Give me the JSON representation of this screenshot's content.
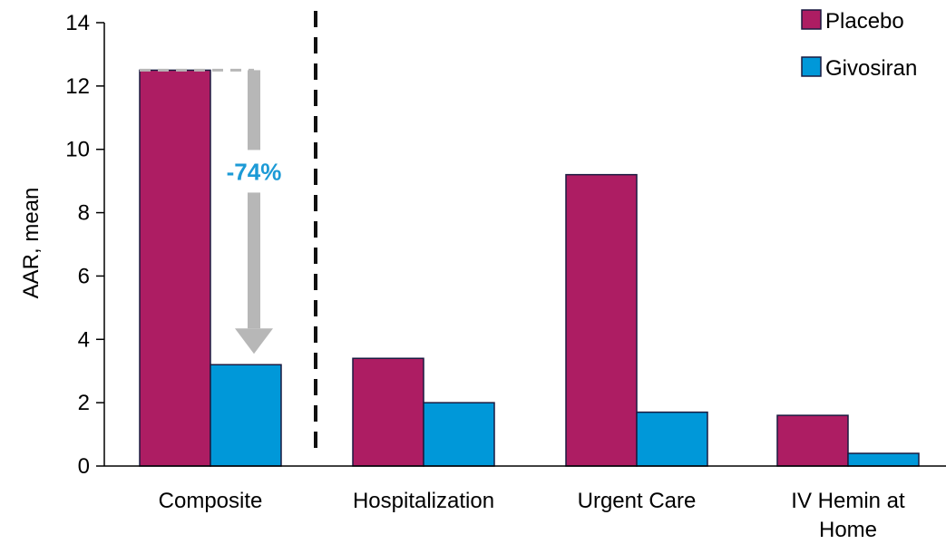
{
  "colors": {
    "placebo": "#ad1d63",
    "givosiran": "#0098d9",
    "bar_outline": "#1a1a40",
    "arrow": "#b7b7b7",
    "annotation": "#1c9ad6",
    "divider": "#111111"
  },
  "chart_data": {
    "type": "bar",
    "title": "",
    "xlabel": "",
    "ylabel": "AAR, mean",
    "ylim": [
      0,
      14
    ],
    "yticks": [
      0,
      2,
      4,
      6,
      8,
      10,
      12,
      14
    ],
    "grid": false,
    "legend_position": "top-right",
    "categories": [
      "Composite",
      "Hospitalization",
      "Urgent Care",
      "IV Hemin at Home"
    ],
    "series": [
      {
        "name": "Placebo",
        "values": [
          12.5,
          3.4,
          9.2,
          1.6
        ]
      },
      {
        "name": "Givosiran",
        "values": [
          3.2,
          2.0,
          1.7,
          0.4
        ]
      }
    ],
    "annotation": {
      "text": "-74%",
      "category": "Composite",
      "from_value": 12.5,
      "to_value": 3.2
    }
  }
}
